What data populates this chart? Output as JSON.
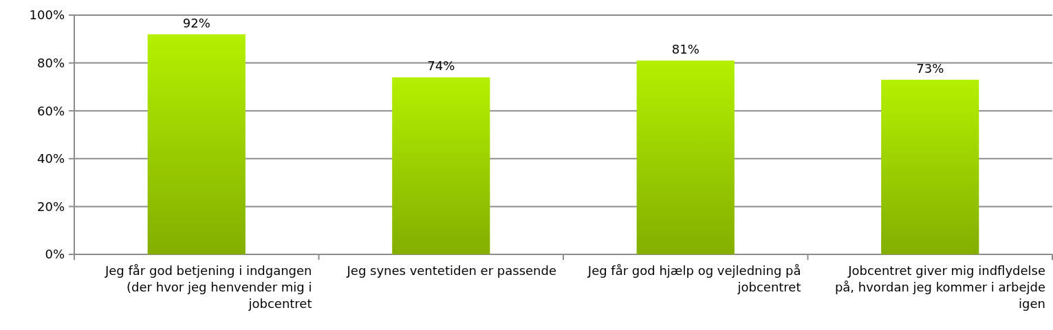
{
  "chart_data": {
    "type": "bar",
    "categories": [
      "Jeg får god betjening i indgangen (der hvor jeg henvender mig i jobcentret",
      "Jeg synes ventetiden er passende",
      "Jeg får god hjælp og vejledning på jobcentret",
      "Jobcentret giver mig indflydelse på, hvordan jeg kommer i arbejde igen"
    ],
    "values": [
      92,
      74,
      81,
      73
    ],
    "color": "#9cd000",
    "ylim": [
      0,
      100
    ],
    "yticks": [
      {
        "value": 0,
        "label": "0%"
      },
      {
        "value": 20,
        "label": "20%"
      },
      {
        "value": 40,
        "label": "40%"
      },
      {
        "value": 60,
        "label": "60%"
      },
      {
        "value": 80,
        "label": "80%"
      },
      {
        "value": 100,
        "label": "100%"
      }
    ],
    "grid": "y",
    "value_labels": [
      "92%",
      "74%",
      "81%",
      "73%"
    ]
  }
}
